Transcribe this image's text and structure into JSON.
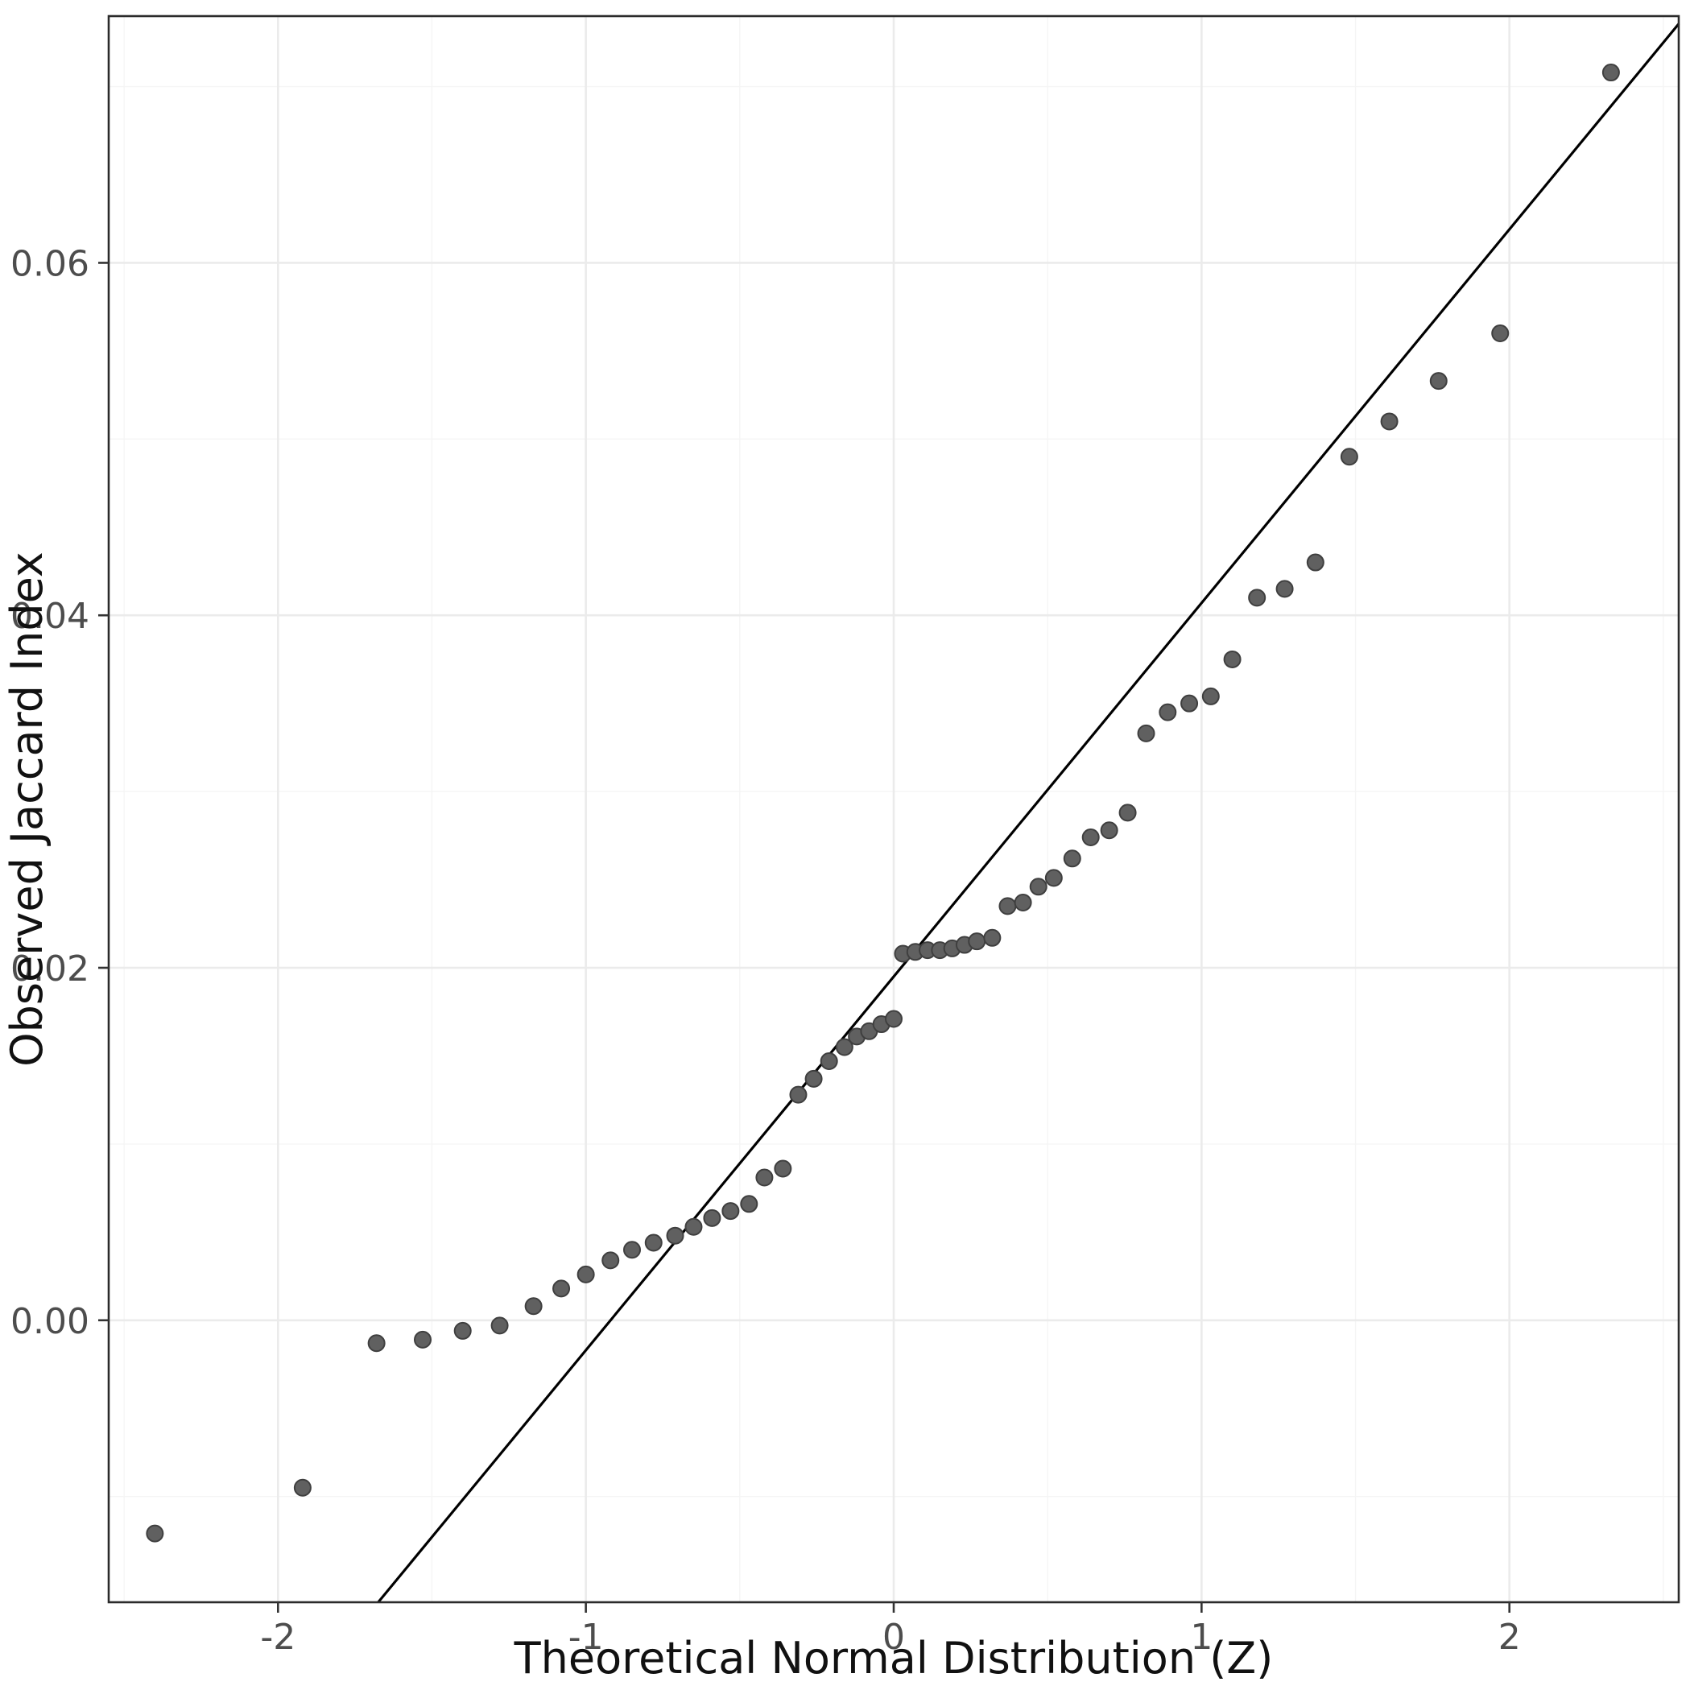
{
  "figure": {
    "background": "#FFFFFF",
    "panel_border_color": "#2b2b2b",
    "grid_major_color": "#EBEBEB",
    "grid_minor_color": "#F5F5F5",
    "point_fill": "#606060",
    "point_stroke": "#3f3f3f",
    "line_color": "#000000",
    "tick_color": "#333333"
  },
  "chart_data": {
    "type": "scatter",
    "subtype": "qq-plot",
    "title": "",
    "xlabel": "Theoretical Normal Distribution (Z)",
    "ylabel": "Observed Jaccard Index",
    "xlim": [
      -2.55,
      2.55
    ],
    "ylim": [
      -0.016,
      0.074
    ],
    "grid": "major-and-minor",
    "legend": "none",
    "x_tick_values": [
      -2,
      -1,
      0,
      1,
      2
    ],
    "x_tick_labels": [
      "-2",
      "-1",
      "0",
      "1",
      "2"
    ],
    "y_tick_values": [
      0.0,
      0.02,
      0.04,
      0.06
    ],
    "y_tick_labels": [
      "0.00",
      "0.02",
      "0.04",
      "0.06"
    ],
    "points": [
      [
        -2.4,
        -0.0121
      ],
      [
        -1.92,
        -0.0095
      ],
      [
        -1.68,
        -0.0013
      ],
      [
        -1.53,
        -0.0011
      ],
      [
        -1.4,
        -0.0006
      ],
      [
        -1.28,
        -0.0003
      ],
      [
        -1.17,
        0.0008
      ],
      [
        -1.08,
        0.0018
      ],
      [
        -1.0,
        0.0026
      ],
      [
        -0.92,
        0.0034
      ],
      [
        -0.85,
        0.004
      ],
      [
        -0.78,
        0.0044
      ],
      [
        -0.71,
        0.0048
      ],
      [
        -0.65,
        0.0053
      ],
      [
        -0.59,
        0.0058
      ],
      [
        -0.53,
        0.0062
      ],
      [
        -0.47,
        0.0066
      ],
      [
        -0.42,
        0.0081
      ],
      [
        -0.36,
        0.0086
      ],
      [
        -0.31,
        0.0128
      ],
      [
        -0.26,
        0.0137
      ],
      [
        -0.21,
        0.0147
      ],
      [
        -0.16,
        0.0155
      ],
      [
        -0.12,
        0.0161
      ],
      [
        -0.08,
        0.0164
      ],
      [
        -0.04,
        0.0168
      ],
      [
        0.0,
        0.0171
      ],
      [
        0.03,
        0.0208
      ],
      [
        0.07,
        0.0209
      ],
      [
        0.11,
        0.021
      ],
      [
        0.15,
        0.021
      ],
      [
        0.19,
        0.0211
      ],
      [
        0.23,
        0.0213
      ],
      [
        0.27,
        0.0215
      ],
      [
        0.32,
        0.0217
      ],
      [
        0.37,
        0.0235
      ],
      [
        0.42,
        0.0237
      ],
      [
        0.47,
        0.0246
      ],
      [
        0.52,
        0.0251
      ],
      [
        0.58,
        0.0262
      ],
      [
        0.64,
        0.0274
      ],
      [
        0.7,
        0.0278
      ],
      [
        0.76,
        0.0288
      ],
      [
        0.82,
        0.0333
      ],
      [
        0.89,
        0.0345
      ],
      [
        0.96,
        0.035
      ],
      [
        1.03,
        0.0354
      ],
      [
        1.1,
        0.0375
      ],
      [
        1.18,
        0.041
      ],
      [
        1.27,
        0.0415
      ],
      [
        1.37,
        0.043
      ],
      [
        1.48,
        0.049
      ],
      [
        1.61,
        0.051
      ],
      [
        1.77,
        0.0533
      ],
      [
        1.97,
        0.056
      ],
      [
        2.33,
        0.0708
      ]
    ],
    "reference_line": {
      "type": "abline",
      "intercept": 0.0195,
      "slope": 0.0212
    }
  }
}
